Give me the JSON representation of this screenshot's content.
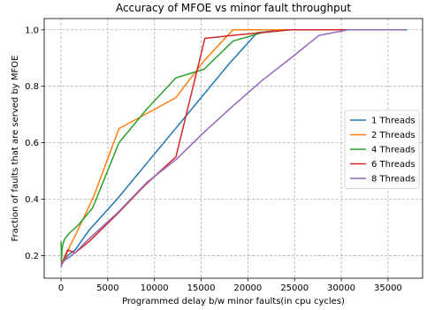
{
  "chart_data": {
    "type": "line",
    "title": "Accuracy of MFOE vs minor fault throughput",
    "xlabel": "Programmed delay b/w minor faults(in cpu cycles)",
    "ylabel": "Fraction of faults that are served by MFOE",
    "xlim": [
      -1800,
      38700
    ],
    "ylim": [
      0.12,
      1.04
    ],
    "xticks": [
      0,
      5000,
      10000,
      15000,
      20000,
      25000,
      30000,
      35000
    ],
    "xtick_labels": [
      "0",
      "5000",
      "10000",
      "15000",
      "20000",
      "25000",
      "30000",
      "35000"
    ],
    "yticks": [
      0.2,
      0.4,
      0.6,
      0.8,
      1.0
    ],
    "ytick_labels": [
      "0.2",
      "0.4",
      "0.6",
      "0.8",
      "1.0"
    ],
    "grid": true,
    "legend_position": "center-right",
    "series": [
      {
        "name": "1 Threads",
        "color": "#1f77b4",
        "x": [
          0,
          100,
          300,
          700,
          1500,
          3000,
          6000,
          9000,
          12000,
          15000,
          18000,
          21000,
          24000,
          27000,
          30000,
          33000,
          37000
        ],
        "y": [
          0.16,
          0.17,
          0.18,
          0.2,
          0.22,
          0.29,
          0.4,
          0.52,
          0.64,
          0.76,
          0.88,
          0.99,
          1.0,
          1.0,
          1.0,
          1.0,
          1.0
        ]
      },
      {
        "name": "2 Threads",
        "color": "#ff7f0e",
        "x": [
          0,
          100,
          400,
          900,
          1800,
          3500,
          6200,
          9000,
          12300,
          15300,
          18400,
          21500,
          24500,
          27500,
          30600,
          33700,
          36800
        ],
        "y": [
          0.19,
          0.17,
          0.19,
          0.23,
          0.29,
          0.41,
          0.65,
          0.7,
          0.76,
          0.89,
          1.0,
          1.0,
          1.0,
          1.0,
          1.0,
          1.0,
          1.0
        ]
      },
      {
        "name": "4 Threads",
        "color": "#2ca02c",
        "x": [
          0,
          50,
          100,
          200,
          400,
          900,
          1900,
          3400,
          6200,
          9200,
          12300,
          15300,
          18400,
          21500,
          24500,
          27600,
          30700,
          33700,
          36800
        ],
        "y": [
          0.25,
          0.18,
          0.22,
          0.24,
          0.26,
          0.28,
          0.31,
          0.37,
          0.6,
          0.72,
          0.83,
          0.86,
          0.96,
          0.99,
          1.0,
          1.0,
          1.0,
          1.0,
          1.0
        ]
      },
      {
        "name": "6 Threads",
        "color": "#d62728",
        "x": [
          0,
          200,
          700,
          1500,
          3000,
          6100,
          9000,
          12300,
          15400,
          18300,
          21400,
          24500,
          27500,
          30600,
          33600,
          36800
        ],
        "y": [
          0.17,
          0.18,
          0.22,
          0.21,
          0.25,
          0.35,
          0.45,
          0.55,
          0.97,
          0.98,
          0.99,
          1.0,
          1.0,
          1.0,
          1.0,
          1.0
        ]
      },
      {
        "name": "8 Threads",
        "color": "#9467bd",
        "x": [
          0,
          200,
          700,
          1500,
          3000,
          6000,
          9200,
          12300,
          15400,
          18400,
          21500,
          24600,
          27600,
          30700,
          33800,
          36800
        ],
        "y": [
          0.16,
          0.18,
          0.19,
          0.21,
          0.26,
          0.35,
          0.46,
          0.54,
          0.64,
          0.73,
          0.82,
          0.9,
          0.98,
          1.0,
          1.0,
          1.0
        ]
      }
    ]
  }
}
